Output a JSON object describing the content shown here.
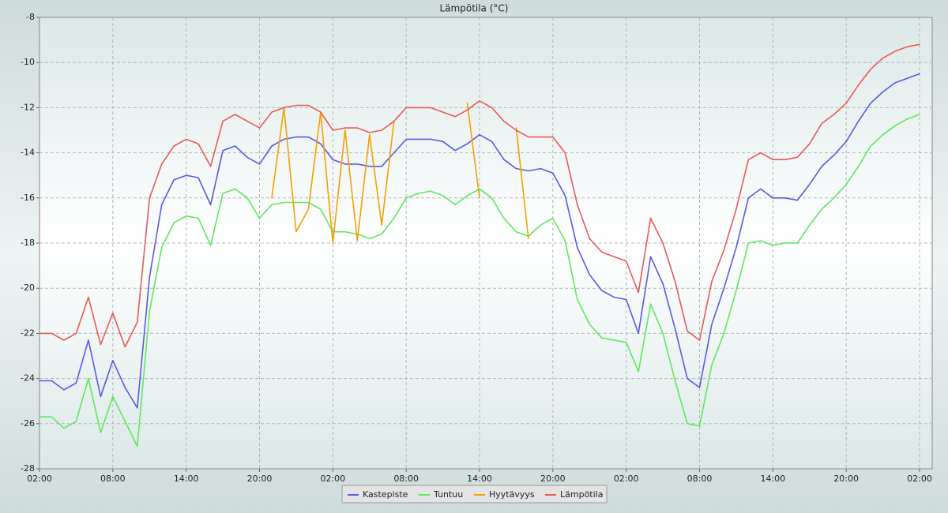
{
  "chart_data": {
    "type": "line",
    "title": "Lämpötila (°C)",
    "categories": [
      "02:00",
      null,
      null,
      null,
      null,
      null,
      "08:00",
      null,
      null,
      null,
      null,
      null,
      "14:00",
      null,
      null,
      null,
      null,
      null,
      "20:00",
      null,
      null,
      null,
      null,
      null,
      "02:00",
      null,
      null,
      null,
      null,
      null,
      "08:00",
      null,
      null,
      null,
      null,
      null,
      "14:00",
      null,
      null,
      null,
      null,
      null,
      "20:00",
      null,
      null,
      null,
      null,
      null,
      "02:00",
      null,
      null,
      null,
      null,
      null,
      "08:00",
      null,
      null,
      null,
      null,
      null,
      "14:00",
      null,
      null,
      null,
      null,
      null,
      "20:00",
      null,
      null,
      null,
      null,
      null,
      "02:00"
    ],
    "series": [
      {
        "name": "Kastepiste",
        "color": "#5a5ae0",
        "values": [
          -24.1,
          -24.1,
          -24.5,
          -24.2,
          -22.3,
          -24.8,
          -23.2,
          -24.4,
          -25.3,
          -19.5,
          -16.3,
          -15.2,
          -15.0,
          -15.1,
          -16.3,
          -13.9,
          -13.7,
          -14.2,
          -14.5,
          -13.7,
          -13.4,
          -13.3,
          -13.3,
          -13.6,
          -14.3,
          -14.5,
          -14.5,
          -14.6,
          -14.6,
          -14.0,
          -13.4,
          -13.4,
          -13.4,
          -13.5,
          -13.9,
          -13.6,
          -13.2,
          -13.5,
          -14.3,
          -14.7,
          -14.8,
          -14.7,
          -14.9,
          -15.9,
          -18.2,
          -19.4,
          -20.1,
          -20.4,
          -20.5,
          -22.0,
          -18.6,
          -19.8,
          -21.8,
          -24.0,
          -24.4,
          -21.6,
          -20.0,
          -18.2,
          -16.0,
          -15.6,
          -16.0,
          -16.0,
          -16.1,
          -15.4,
          -14.6,
          -14.1,
          -13.5,
          -12.6,
          -11.8,
          -11.3,
          -10.9,
          -10.7,
          -10.5
        ]
      },
      {
        "name": "Tuntuu",
        "color": "#5ee85e",
        "values": [
          -25.7,
          -25.7,
          -26.2,
          -25.9,
          -24.0,
          -26.4,
          -24.8,
          -25.9,
          -27.0,
          -21.0,
          -18.2,
          -17.1,
          -16.8,
          -16.9,
          -18.1,
          -15.8,
          -15.6,
          -16.0,
          -16.9,
          -16.3,
          -16.2,
          -16.2,
          -16.2,
          -16.5,
          -17.5,
          -17.5,
          -17.6,
          -17.8,
          -17.6,
          -16.9,
          -16.0,
          -15.8,
          -15.7,
          -15.9,
          -16.3,
          -15.9,
          -15.6,
          -16.0,
          -16.9,
          -17.5,
          -17.7,
          -17.2,
          -16.9,
          -17.9,
          -20.5,
          -21.6,
          -22.2,
          -22.3,
          -22.4,
          -23.7,
          -20.7,
          -22.0,
          -24.1,
          -26.0,
          -26.1,
          -23.4,
          -22.0,
          -20.1,
          -18.0,
          -17.9,
          -18.1,
          -18.0,
          -18.0,
          -17.2,
          -16.5,
          -16.0,
          -15.4,
          -14.6,
          -13.7,
          -13.2,
          -12.8,
          -12.5,
          -12.3
        ]
      },
      {
        "name": "Hyytävyys",
        "color": "#f5a000",
        "values": [
          null,
          null,
          null,
          null,
          null,
          null,
          null,
          null,
          null,
          null,
          null,
          null,
          null,
          null,
          null,
          null,
          null,
          null,
          null,
          -16.0,
          -12.0,
          -17.5,
          -16.5,
          -12.2,
          -18.0,
          -13.0,
          -17.9,
          -13.2,
          -17.2,
          -12.6,
          null,
          null,
          null,
          null,
          null,
          -11.8,
          -16.0,
          null,
          null,
          -12.9,
          -17.8,
          null,
          null,
          null,
          null,
          null,
          null,
          null,
          null,
          null,
          null,
          null,
          null,
          null,
          null,
          null,
          null,
          null,
          null,
          null,
          null,
          null,
          null,
          null,
          null,
          null,
          null,
          null,
          null,
          null,
          null,
          null,
          null
        ]
      },
      {
        "name": "Lämpötila",
        "color": "#e85a5a",
        "values": [
          -22.0,
          -22.0,
          -22.3,
          -22.0,
          -20.4,
          -22.5,
          -21.1,
          -22.6,
          -21.5,
          -16.0,
          -14.5,
          -13.7,
          -13.4,
          -13.6,
          -14.6,
          -12.6,
          -12.3,
          -12.6,
          -12.9,
          -12.2,
          -12.0,
          -11.9,
          -11.9,
          -12.2,
          -13.0,
          -12.9,
          -12.9,
          -13.1,
          -13.0,
          -12.6,
          -12.0,
          -12.0,
          -12.0,
          -12.2,
          -12.4,
          -12.1,
          -11.7,
          -12.0,
          -12.6,
          -13.0,
          -13.3,
          -13.3,
          -13.3,
          -14.0,
          -16.3,
          -17.8,
          -18.4,
          -18.6,
          -18.8,
          -20.2,
          -16.9,
          -18.0,
          -19.7,
          -21.9,
          -22.3,
          -19.7,
          -18.3,
          -16.5,
          -14.3,
          -14.0,
          -14.3,
          -14.3,
          -14.2,
          -13.6,
          -12.7,
          -12.3,
          -11.8,
          -11.0,
          -10.3,
          -9.8,
          -9.5,
          -9.3,
          -9.2
        ]
      }
    ],
    "ylim": [
      -28,
      -8
    ],
    "yticks": [
      -28,
      -26,
      -24,
      -22,
      -20,
      -18,
      -16,
      -14,
      -12,
      -10,
      -8
    ],
    "grid": true,
    "legend": "bottom"
  }
}
